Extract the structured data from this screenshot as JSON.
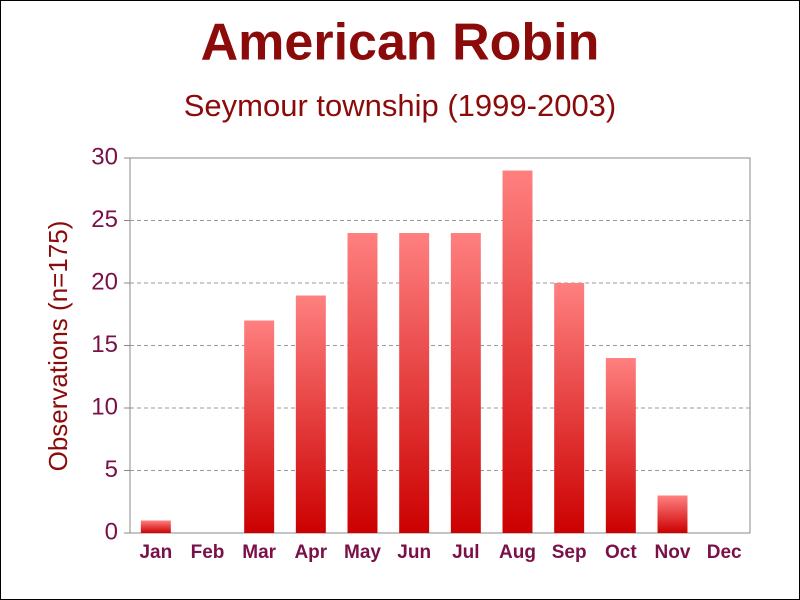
{
  "chart_data": {
    "type": "bar",
    "title": "American Robin",
    "subtitle": "Seymour township (1999-2003)",
    "y_label": "Observations (n=175)",
    "categories": [
      "Jan",
      "Feb",
      "Mar",
      "Apr",
      "May",
      "Jun",
      "Jul",
      "Aug",
      "Sep",
      "Oct",
      "Nov",
      "Dec"
    ],
    "values": [
      1,
      0,
      17,
      19,
      24,
      24,
      24,
      29,
      20,
      14,
      3,
      0
    ],
    "color": "#cc0000",
    "gradient_top": "#ff8080",
    "ylim": [
      0,
      30
    ],
    "yticks": [
      0,
      5,
      10,
      15,
      20,
      25,
      30
    ],
    "grid": true
  }
}
